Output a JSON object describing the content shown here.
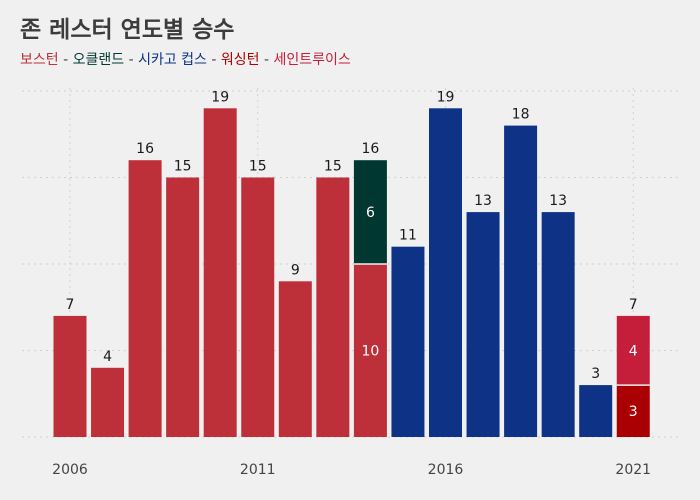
{
  "chart_data": {
    "type": "bar",
    "stacked": true,
    "title": "존 레스터 연도별 승수",
    "legend": [
      {
        "name": "보스턴",
        "color": "#bd3039"
      },
      {
        "name": "오클랜드",
        "color": "#003831"
      },
      {
        "name": "시카고 컵스",
        "color": "#0e3386"
      },
      {
        "name": "워싱턴",
        "color": "#ab0003"
      },
      {
        "name": "세인트루이스",
        "color": "#c41e3a"
      }
    ],
    "separator": " - ",
    "x": [
      2006,
      2007,
      2008,
      2009,
      2010,
      2011,
      2012,
      2013,
      2014,
      2015,
      2016,
      2017,
      2018,
      2019,
      2020,
      2021
    ],
    "segments": [
      [
        {
          "team": "보스턴",
          "value": 7
        }
      ],
      [
        {
          "team": "보스턴",
          "value": 4
        }
      ],
      [
        {
          "team": "보스턴",
          "value": 16
        }
      ],
      [
        {
          "team": "보스턴",
          "value": 15
        }
      ],
      [
        {
          "team": "보스턴",
          "value": 19
        }
      ],
      [
        {
          "team": "보스턴",
          "value": 15
        }
      ],
      [
        {
          "team": "보스턴",
          "value": 9
        }
      ],
      [
        {
          "team": "보스턴",
          "value": 15
        }
      ],
      [
        {
          "team": "보스턴",
          "value": 10
        },
        {
          "team": "오클랜드",
          "value": 6
        }
      ],
      [
        {
          "team": "시카고 컵스",
          "value": 11
        }
      ],
      [
        {
          "team": "시카고 컵스",
          "value": 19
        }
      ],
      [
        {
          "team": "시카고 컵스",
          "value": 13
        }
      ],
      [
        {
          "team": "시카고 컵스",
          "value": 18
        }
      ],
      [
        {
          "team": "시카고 컵스",
          "value": 13
        }
      ],
      [
        {
          "team": "시카고 컵스",
          "value": 3
        }
      ],
      [
        {
          "team": "워싱턴",
          "value": 3
        },
        {
          "team": "세인트루이스",
          "value": 4
        }
      ]
    ],
    "totals": [
      7,
      4,
      16,
      15,
      19,
      15,
      9,
      15,
      16,
      11,
      19,
      13,
      18,
      13,
      3,
      7
    ],
    "xticks": [
      2006,
      2011,
      2016,
      2021
    ],
    "ylim": [
      0,
      20
    ],
    "grid": true
  }
}
